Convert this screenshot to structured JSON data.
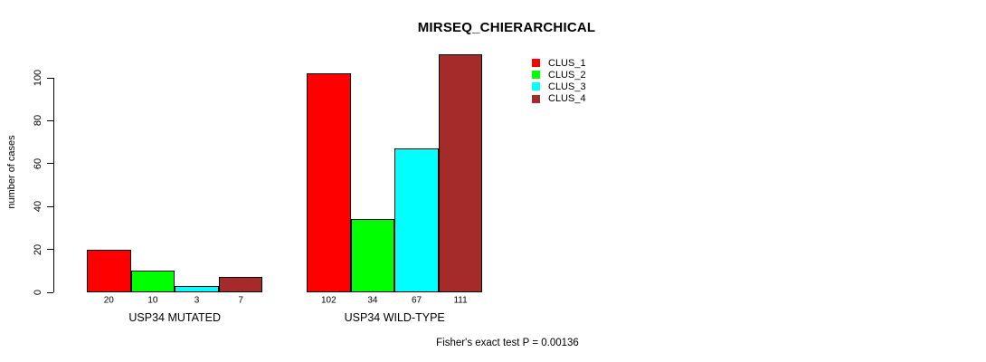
{
  "chart_data": {
    "type": "bar",
    "title": "MIRSEQ_CHIERARCHICAL",
    "ylabel": "number of cases",
    "annotation": "Fisher's exact test P = 0.00136",
    "categories": [
      "USP34 MUTATED",
      "USP34 WILD-TYPE"
    ],
    "series": [
      {
        "name": "CLUS_1",
        "color": "#ff0000",
        "values": [
          20,
          102
        ]
      },
      {
        "name": "CLUS_2",
        "color": "#00ff00",
        "values": [
          10,
          34
        ]
      },
      {
        "name": "CLUS_3",
        "color": "#00ffff",
        "values": [
          3,
          67
        ]
      },
      {
        "name": "CLUS_4",
        "color": "#a52a2a",
        "values": [
          7,
          111
        ]
      }
    ],
    "yticks": [
      0,
      20,
      40,
      60,
      80,
      100
    ],
    "ylim": [
      0,
      100
    ],
    "grid": false,
    "legend_position": "top-right",
    "show_value_labels": true,
    "axis_color": "#000000",
    "bar_border_color": "#000000"
  }
}
